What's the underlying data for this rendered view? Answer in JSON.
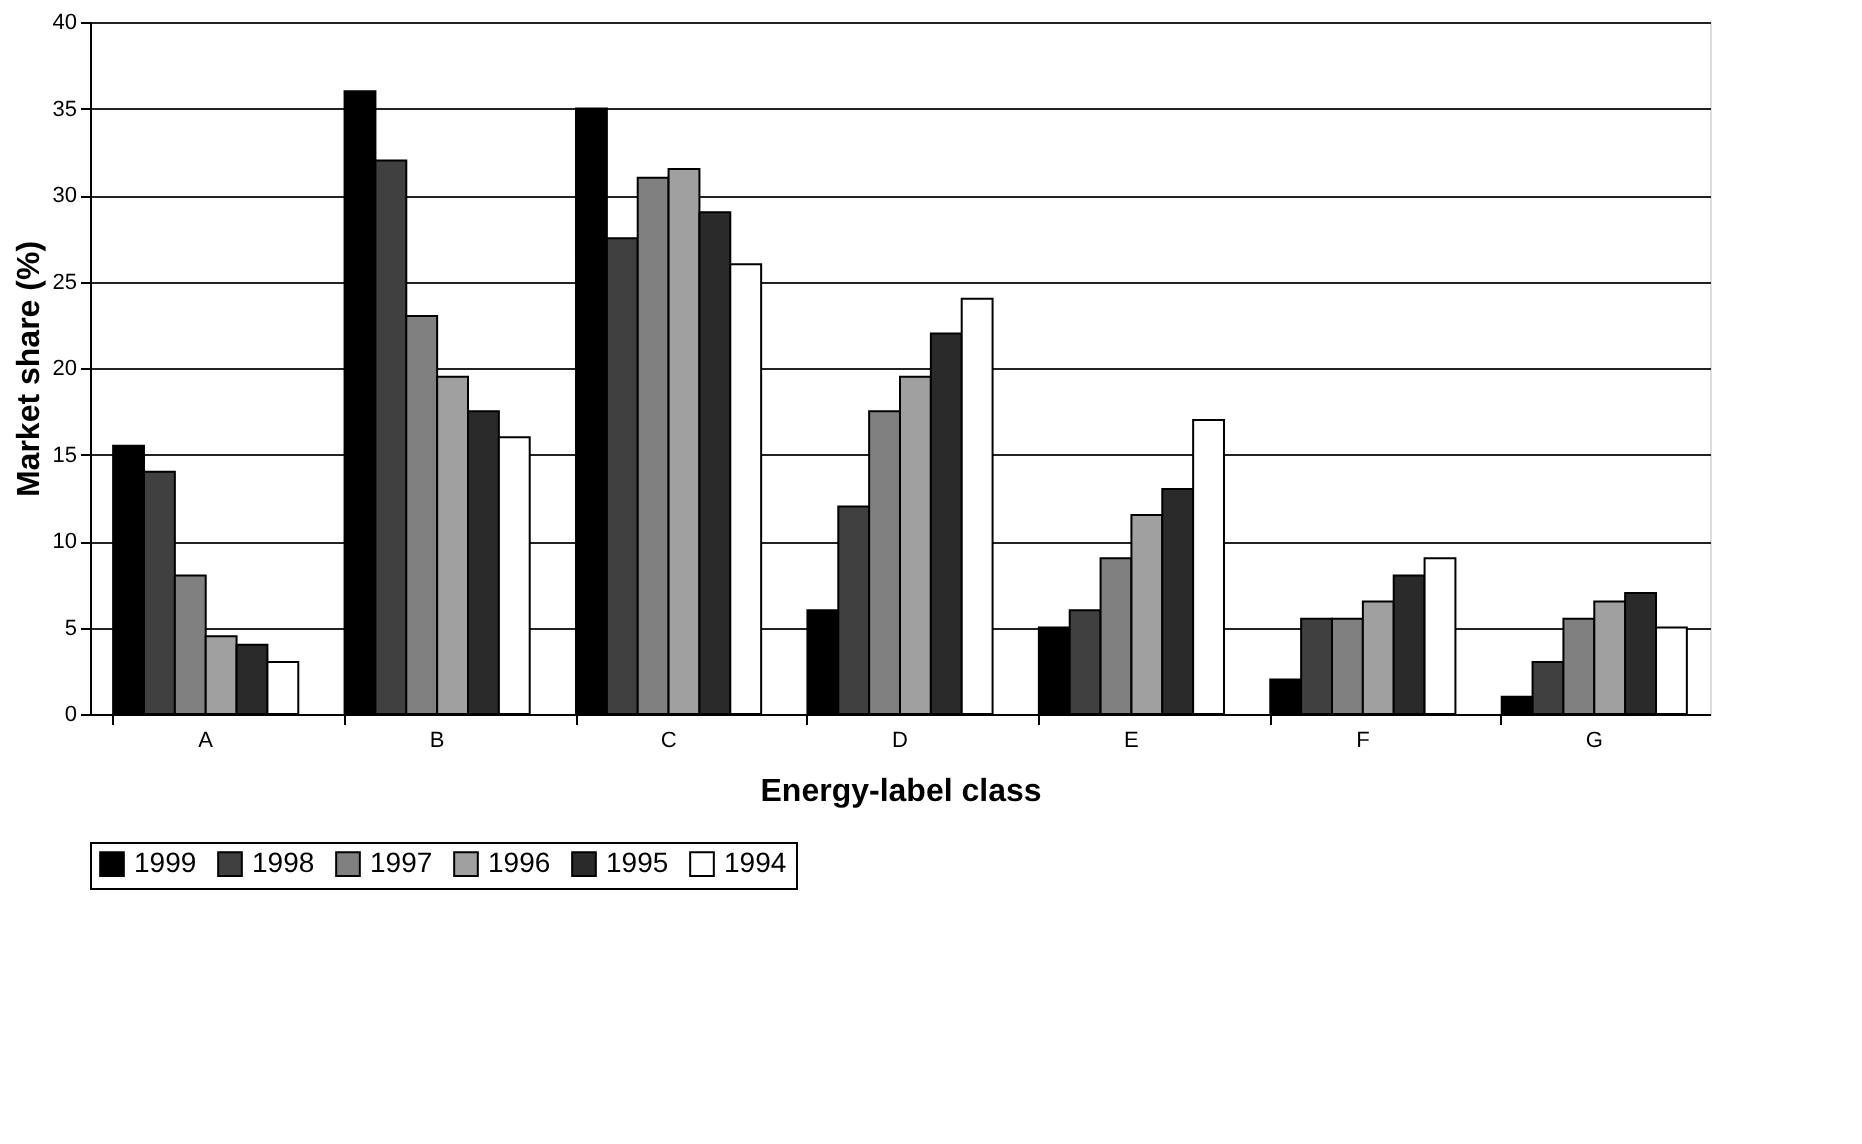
{
  "chart_data": {
    "type": "bar",
    "xlabel": "Energy-label class",
    "ylabel": "Market share (%)",
    "categories": [
      "A",
      "B",
      "C",
      "D",
      "E",
      "F",
      "G"
    ],
    "series": [
      {
        "name": "1999",
        "color": "#000000",
        "values": [
          15.5,
          36,
          35,
          6,
          5,
          2,
          1
        ]
      },
      {
        "name": "1998",
        "color": "#404040",
        "values": [
          14,
          32,
          27.5,
          12,
          6,
          5.5,
          3
        ]
      },
      {
        "name": "1997",
        "color": "#808080",
        "values": [
          8,
          23,
          31,
          17.5,
          9,
          5.5,
          5.5
        ]
      },
      {
        "name": "1996",
        "color": "#a0a0a0",
        "values": [
          4.5,
          19.5,
          31.5,
          19.5,
          11.5,
          6.5,
          6.5
        ]
      },
      {
        "name": "1995",
        "color": "#2a2a2a",
        "values": [
          4,
          17.5,
          29,
          22,
          13,
          8,
          7
        ]
      },
      {
        "name": "1994",
        "color": "#ffffff",
        "values": [
          3,
          16,
          26,
          24,
          17,
          9,
          5
        ]
      }
    ],
    "ylim": [
      0,
      40
    ],
    "yticks": [
      0,
      5,
      10,
      15,
      20,
      25,
      30,
      35,
      40
    ],
    "grid": "y",
    "legend": "bottom"
  }
}
